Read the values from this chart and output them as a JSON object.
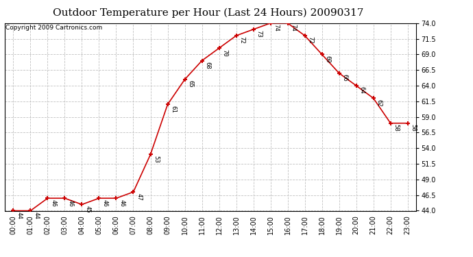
{
  "title": "Outdoor Temperature per Hour (Last 24 Hours) 20090317",
  "copyright": "Copyright 2009 Cartronics.com",
  "hours": [
    "00:00",
    "01:00",
    "02:00",
    "03:00",
    "04:00",
    "05:00",
    "06:00",
    "07:00",
    "08:00",
    "09:00",
    "10:00",
    "11:00",
    "12:00",
    "13:00",
    "14:00",
    "15:00",
    "16:00",
    "17:00",
    "18:00",
    "19:00",
    "20:00",
    "21:00",
    "22:00",
    "23:00"
  ],
  "temps": [
    44,
    44,
    46,
    46,
    45,
    46,
    46,
    47,
    53,
    61,
    65,
    68,
    70,
    72,
    73,
    74,
    74,
    72,
    69,
    66,
    64,
    62,
    58,
    58
  ],
  "ylim_min": 44.0,
  "ylim_max": 74.0,
  "line_color": "#cc0000",
  "marker_color": "#cc0000",
  "grid_color": "#c0c0c0",
  "bg_color": "#ffffff",
  "title_fontsize": 11,
  "copyright_fontsize": 6.5,
  "label_fontsize": 6.5,
  "tick_fontsize": 7,
  "ytick_interval": 2.5
}
